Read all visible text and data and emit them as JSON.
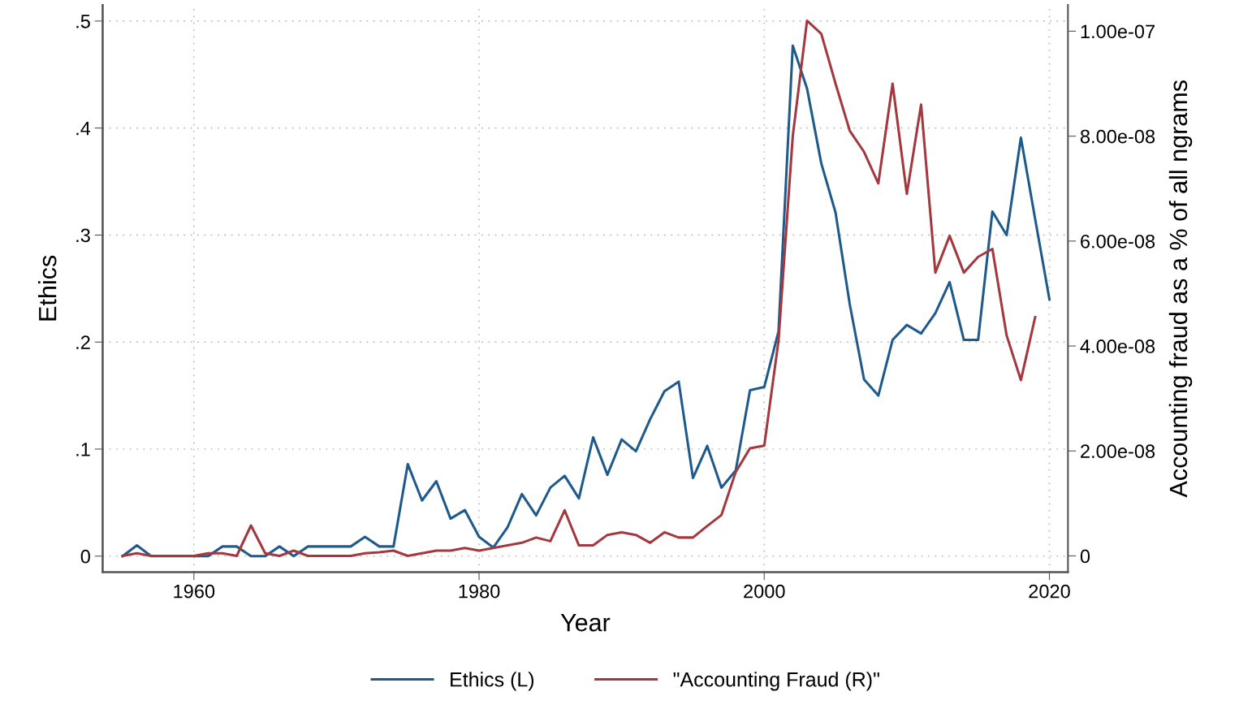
{
  "chart_data": {
    "type": "line",
    "xlabel": "Year",
    "ylabel": "Ethics",
    "y2label": "Accounting fraud as a % of all ngrams",
    "x": [
      1955,
      1956,
      1957,
      1958,
      1959,
      1960,
      1961,
      1962,
      1963,
      1964,
      1965,
      1966,
      1967,
      1968,
      1969,
      1970,
      1971,
      1972,
      1973,
      1974,
      1975,
      1976,
      1977,
      1978,
      1979,
      1980,
      1981,
      1982,
      1983,
      1984,
      1985,
      1986,
      1987,
      1988,
      1989,
      1990,
      1991,
      1992,
      1993,
      1994,
      1995,
      1996,
      1997,
      1998,
      1999,
      2000,
      2001,
      2002,
      2003,
      2004,
      2005,
      2006,
      2007,
      2008,
      2009,
      2010,
      2011,
      2012,
      2013,
      2014,
      2015,
      2016,
      2017,
      2018,
      2019,
      2020
    ],
    "series": [
      {
        "name": "Ethics (L)",
        "color": "#1f5a8c",
        "axis": "y",
        "values": [
          0,
          0.01,
          0,
          0,
          0,
          0,
          0,
          0.009,
          0.009,
          0,
          0,
          0.009,
          0,
          0.009,
          0.009,
          0.009,
          0.009,
          0.018,
          0.009,
          0.009,
          0.086,
          0.052,
          0.07,
          0.035,
          0.043,
          0.018,
          0.008,
          0.027,
          0.058,
          0.038,
          0.064,
          0.075,
          0.054,
          0.111,
          0.076,
          0.109,
          0.098,
          0.128,
          0.154,
          0.163,
          0.073,
          0.103,
          0.064,
          0.08,
          0.155,
          0.158,
          0.21,
          0.477,
          0.437,
          0.367,
          0.321,
          0.235,
          0.165,
          0.15,
          0.202,
          0.216,
          0.208,
          0.227,
          0.256,
          0.202,
          0.202,
          0.322,
          0.3,
          0.391,
          0.315,
          0.24
        ]
      },
      {
        "name": "\"Accounting Fraud (R)\"",
        "color": "#a3393f",
        "axis": "y2",
        "values": [
          0,
          5e-10,
          0,
          0,
          0,
          0,
          5e-10,
          5e-10,
          0,
          5.8e-09,
          5e-10,
          0,
          1e-09,
          0,
          0,
          0,
          0,
          5e-10,
          7e-10,
          1e-09,
          0,
          5e-10,
          1e-09,
          1e-09,
          1.5e-09,
          1e-09,
          1.5e-09,
          2e-09,
          2.5e-09,
          3.5e-09,
          2.8e-09,
          8.7e-09,
          2e-09,
          2e-09,
          4e-09,
          4.5e-09,
          4e-09,
          2.5e-09,
          4.5e-09,
          3.5e-09,
          3.5e-09,
          5.7e-09,
          7.8e-09,
          1.6e-08,
          2.05e-08,
          2.1e-08,
          4.1e-08,
          8e-08,
          1.02e-07,
          9.95e-08,
          9e-08,
          8.1e-08,
          7.7e-08,
          7.1e-08,
          9e-08,
          6.9e-08,
          8.6e-08,
          5.4e-08,
          6.1e-08,
          5.4e-08,
          5.7e-08,
          5.85e-08,
          4.2e-08,
          3.35e-08,
          4.55e-08,
          null
        ]
      }
    ],
    "xlim": [
      1953.6,
      2021.3
    ],
    "xticks": [
      1960,
      1980,
      2000,
      2020
    ],
    "ylim": [
      -0.015,
      0.515
    ],
    "yticks": [
      0,
      {
        "value": 0.1,
        "label": ".1"
      },
      {
        "value": 0.2,
        "label": ".2"
      },
      {
        "value": 0.3,
        "label": ".3"
      },
      {
        "value": 0.4,
        "label": ".4"
      },
      {
        "value": 0.5,
        "label": ".5"
      }
    ],
    "y2lim": [
      -3.1e-09,
      1.05e-07
    ],
    "y2ticks": [
      0,
      {
        "value": 2e-08,
        "label": "2.00e-08"
      },
      {
        "value": 4e-08,
        "label": "4.00e-08"
      },
      {
        "value": 6e-08,
        "label": "6.00e-08"
      },
      {
        "value": 8e-08,
        "label": "8.00e-08"
      },
      {
        "value": 1e-07,
        "label": "1.00e-07"
      }
    ],
    "grid": true,
    "legend": "bottom",
    "marker": "none",
    "line_style": "solid"
  }
}
